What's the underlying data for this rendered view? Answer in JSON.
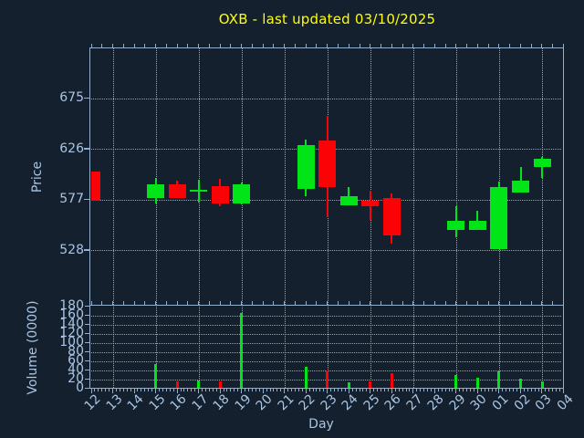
{
  "figure": {
    "title": "OXB - last updated 03/10/2025"
  },
  "colors": {
    "background": "#14202d",
    "axis": "#92b0cd",
    "tick_label": "#a9c5e3",
    "grid": "#c9d2da",
    "title": "#ffff00",
    "up": "#00e418",
    "down": "#fb0207"
  },
  "chart_data": {
    "type": "candlestick",
    "title": "OXB - last updated 03/10/2025",
    "xlabel": "Day",
    "price_ylabel": "Price",
    "volume_ylabel": "Volume (0000)",
    "categories": [
      "12",
      "13",
      "14",
      "15",
      "16",
      "17",
      "18",
      "19",
      "20",
      "21",
      "22",
      "23",
      "24",
      "25",
      "26",
      "27",
      "28",
      "29",
      "30",
      "01",
      "02",
      "03",
      "04"
    ],
    "price_yticks": [
      675,
      626,
      577,
      528
    ],
    "price_ylim": [
      475,
      724
    ],
    "volume_yticks": [
      0,
      20,
      40,
      60,
      80,
      100,
      120,
      140,
      160,
      180
    ],
    "volume_ylim": [
      0,
      183
    ],
    "grid": true,
    "gridline_every_other_day": true,
    "legend": "none",
    "candles": [
      {
        "day": "12",
        "open": 604,
        "high": 604,
        "low": 576,
        "close": 576,
        "volume": 0
      },
      {
        "day": "15",
        "open": 578,
        "high": 598,
        "low": 573,
        "close": 592,
        "volume": 54
      },
      {
        "day": "16",
        "open": 592,
        "high": 595,
        "low": 578,
        "close": 578,
        "volume": 15
      },
      {
        "day": "17",
        "open": 586,
        "high": 596,
        "low": 574,
        "close": 586,
        "volume": 17
      },
      {
        "day": "18",
        "open": 590,
        "high": 597,
        "low": 570,
        "close": 573,
        "volume": 15
      },
      {
        "day": "19",
        "open": 573,
        "high": 593,
        "low": 572,
        "close": 592,
        "volume": 165
      },
      {
        "day": "22",
        "open": 587,
        "high": 635,
        "low": 580,
        "close": 630,
        "volume": 48
      },
      {
        "day": "23",
        "open": 634,
        "high": 658,
        "low": 560,
        "close": 589,
        "volume": 40
      },
      {
        "day": "24",
        "open": 571,
        "high": 589,
        "low": 571,
        "close": 580,
        "volume": 14
      },
      {
        "day": "25",
        "open": 576,
        "high": 585,
        "low": 557,
        "close": 570,
        "volume": 16
      },
      {
        "day": "26",
        "open": 578,
        "high": 583,
        "low": 534,
        "close": 542,
        "volume": 34
      },
      {
        "day": "29",
        "open": 547,
        "high": 570,
        "low": 540,
        "close": 556,
        "volume": 30
      },
      {
        "day": "30",
        "open": 547,
        "high": 566,
        "low": 547,
        "close": 556,
        "volume": 24
      },
      {
        "day": "01",
        "open": 529,
        "high": 594,
        "low": 529,
        "close": 589,
        "volume": 38
      },
      {
        "day": "02",
        "open": 584,
        "high": 608,
        "low": 584,
        "close": 595,
        "volume": 22
      },
      {
        "day": "03",
        "open": 608,
        "high": 618,
        "low": 598,
        "close": 616,
        "volume": 16
      }
    ]
  }
}
